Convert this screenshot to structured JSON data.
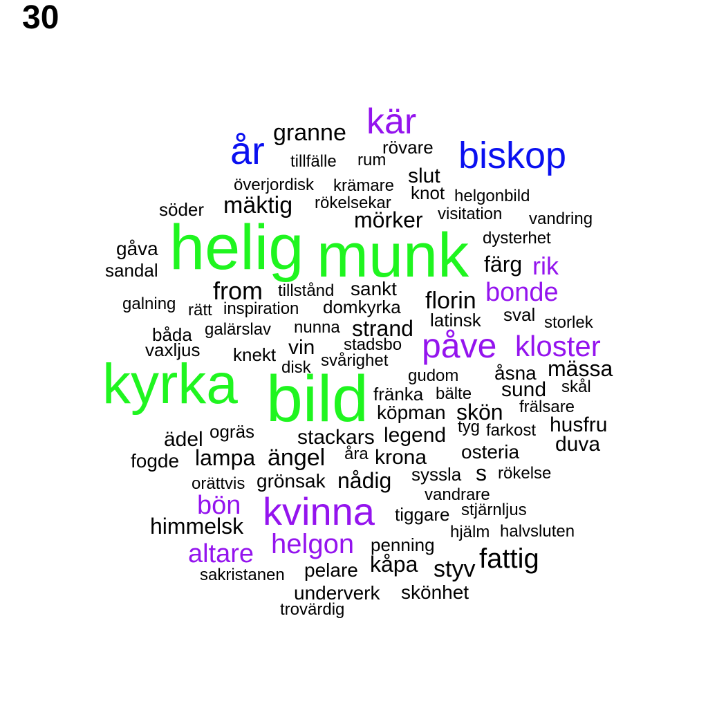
{
  "panel_number": "30",
  "colors": {
    "green": "#1ff51f",
    "blue": "#0a10f0",
    "purple": "#9414ee",
    "black": "#000000"
  },
  "words": [
    {
      "id": "helig",
      "text": "helig",
      "color": "green"
    },
    {
      "id": "munk",
      "text": "munk",
      "color": "green"
    },
    {
      "id": "kyrka",
      "text": "kyrka",
      "color": "green"
    },
    {
      "id": "bild",
      "text": "bild",
      "color": "green"
    },
    {
      "id": "ar",
      "text": "år",
      "color": "blue"
    },
    {
      "id": "biskop",
      "text": "biskop",
      "color": "blue"
    },
    {
      "id": "kar",
      "text": "kär",
      "color": "purple"
    },
    {
      "id": "rik",
      "text": "rik",
      "color": "purple"
    },
    {
      "id": "bonde",
      "text": "bonde",
      "color": "purple"
    },
    {
      "id": "pave",
      "text": "påve",
      "color": "purple"
    },
    {
      "id": "kloster",
      "text": "kloster",
      "color": "purple"
    },
    {
      "id": "bon",
      "text": "bön",
      "color": "purple"
    },
    {
      "id": "kvinna",
      "text": "kvinna",
      "color": "purple"
    },
    {
      "id": "helgon",
      "text": "helgon",
      "color": "purple"
    },
    {
      "id": "altare",
      "text": "altare",
      "color": "purple"
    },
    {
      "id": "granne",
      "text": "granne",
      "color": "black"
    },
    {
      "id": "rovare",
      "text": "rövare",
      "color": "black"
    },
    {
      "id": "tillfalle",
      "text": "tillfälle",
      "color": "black"
    },
    {
      "id": "rum",
      "text": "rum",
      "color": "black"
    },
    {
      "id": "slut",
      "text": "slut",
      "color": "black"
    },
    {
      "id": "overjordisk",
      "text": "överjordisk",
      "color": "black"
    },
    {
      "id": "kramare",
      "text": "krämare",
      "color": "black"
    },
    {
      "id": "knot",
      "text": "knot",
      "color": "black"
    },
    {
      "id": "helgonbild",
      "text": "helgonbild",
      "color": "black"
    },
    {
      "id": "soder",
      "text": "söder",
      "color": "black"
    },
    {
      "id": "maktig",
      "text": "mäktig",
      "color": "black"
    },
    {
      "id": "rokelsekar",
      "text": "rökelsekar",
      "color": "black"
    },
    {
      "id": "visitation",
      "text": "visitation",
      "color": "black"
    },
    {
      "id": "vandring",
      "text": "vandring",
      "color": "black"
    },
    {
      "id": "morker",
      "text": "mörker",
      "color": "black"
    },
    {
      "id": "dysterhet",
      "text": "dysterhet",
      "color": "black"
    },
    {
      "id": "gava",
      "text": "gåva",
      "color": "black"
    },
    {
      "id": "sandal",
      "text": "sandal",
      "color": "black"
    },
    {
      "id": "farg",
      "text": "färg",
      "color": "black"
    },
    {
      "id": "from",
      "text": "from",
      "color": "black"
    },
    {
      "id": "tillstand",
      "text": "tillstånd",
      "color": "black"
    },
    {
      "id": "sankt",
      "text": "sankt",
      "color": "black"
    },
    {
      "id": "galning",
      "text": "galning",
      "color": "black"
    },
    {
      "id": "ratt",
      "text": "rätt",
      "color": "black"
    },
    {
      "id": "inspiration",
      "text": "inspiration",
      "color": "black"
    },
    {
      "id": "domkyrka",
      "text": "domkyrka",
      "color": "black"
    },
    {
      "id": "florin",
      "text": "florin",
      "color": "black"
    },
    {
      "id": "latinsk",
      "text": "latinsk",
      "color": "black"
    },
    {
      "id": "sval",
      "text": "sval",
      "color": "black"
    },
    {
      "id": "storlek",
      "text": "storlek",
      "color": "black"
    },
    {
      "id": "bada",
      "text": "båda",
      "color": "black"
    },
    {
      "id": "galarslav",
      "text": "galärslav",
      "color": "black"
    },
    {
      "id": "nunna",
      "text": "nunna",
      "color": "black"
    },
    {
      "id": "strand",
      "text": "strand",
      "color": "black"
    },
    {
      "id": "vaxljus",
      "text": "vaxljus",
      "color": "black"
    },
    {
      "id": "knekt",
      "text": "knekt",
      "color": "black"
    },
    {
      "id": "vin",
      "text": "vin",
      "color": "black"
    },
    {
      "id": "stadsbo",
      "text": "stadsbo",
      "color": "black"
    },
    {
      "id": "disk",
      "text": "disk",
      "color": "black"
    },
    {
      "id": "svarighet",
      "text": "svårighet",
      "color": "black"
    },
    {
      "id": "massa",
      "text": "mässa",
      "color": "black"
    },
    {
      "id": "asna",
      "text": "åsna",
      "color": "black"
    },
    {
      "id": "gudom",
      "text": "gudom",
      "color": "black"
    },
    {
      "id": "skal",
      "text": "skål",
      "color": "black"
    },
    {
      "id": "sund",
      "text": "sund",
      "color": "black"
    },
    {
      "id": "franka",
      "text": "fränka",
      "color": "black"
    },
    {
      "id": "balte",
      "text": "bälte",
      "color": "black"
    },
    {
      "id": "fralsare",
      "text": "frälsare",
      "color": "black"
    },
    {
      "id": "kopman",
      "text": "köpman",
      "color": "black"
    },
    {
      "id": "skon",
      "text": "skön",
      "color": "black"
    },
    {
      "id": "husfru",
      "text": "husfru",
      "color": "black"
    },
    {
      "id": "adel",
      "text": "ädel",
      "color": "black"
    },
    {
      "id": "ogras",
      "text": "ogräs",
      "color": "black"
    },
    {
      "id": "stackars",
      "text": "stackars",
      "color": "black"
    },
    {
      "id": "legend",
      "text": "legend",
      "color": "black"
    },
    {
      "id": "tyg",
      "text": "tyg",
      "color": "black"
    },
    {
      "id": "farkost",
      "text": "farkost",
      "color": "black"
    },
    {
      "id": "duva",
      "text": "duva",
      "color": "black"
    },
    {
      "id": "fogde",
      "text": "fogde",
      "color": "black"
    },
    {
      "id": "lampa",
      "text": "lampa",
      "color": "black"
    },
    {
      "id": "angel",
      "text": "ängel",
      "color": "black"
    },
    {
      "id": "ara",
      "text": "åra",
      "color": "black"
    },
    {
      "id": "krona",
      "text": "krona",
      "color": "black"
    },
    {
      "id": "osteria",
      "text": "osteria",
      "color": "black"
    },
    {
      "id": "orattvis",
      "text": "orättvis",
      "color": "black"
    },
    {
      "id": "gronsak",
      "text": "grönsak",
      "color": "black"
    },
    {
      "id": "nadig",
      "text": "nådig",
      "color": "black"
    },
    {
      "id": "syssla",
      "text": "syssla",
      "color": "black"
    },
    {
      "id": "s",
      "text": "s",
      "color": "black"
    },
    {
      "id": "rokelse",
      "text": "rökelse",
      "color": "black"
    },
    {
      "id": "vandrare",
      "text": "vandrare",
      "color": "black"
    },
    {
      "id": "tiggare",
      "text": "tiggare",
      "color": "black"
    },
    {
      "id": "stjarnljus",
      "text": "stjärnljus",
      "color": "black"
    },
    {
      "id": "himmelsk",
      "text": "himmelsk",
      "color": "black"
    },
    {
      "id": "hjalm",
      "text": "hjälm",
      "color": "black"
    },
    {
      "id": "halvsluten",
      "text": "halvsluten",
      "color": "black"
    },
    {
      "id": "penning",
      "text": "penning",
      "color": "black"
    },
    {
      "id": "fattig",
      "text": "fattig",
      "color": "black"
    },
    {
      "id": "kapa",
      "text": "kåpa",
      "color": "black"
    },
    {
      "id": "styv",
      "text": "styv",
      "color": "black"
    },
    {
      "id": "sakristanen",
      "text": "sakristanen",
      "color": "black"
    },
    {
      "id": "pelare",
      "text": "pelare",
      "color": "black"
    },
    {
      "id": "underverk",
      "text": "underverk",
      "color": "black"
    },
    {
      "id": "skonhet",
      "text": "skönhet",
      "color": "black"
    },
    {
      "id": "trovardig",
      "text": "trovärdig",
      "color": "black"
    }
  ]
}
